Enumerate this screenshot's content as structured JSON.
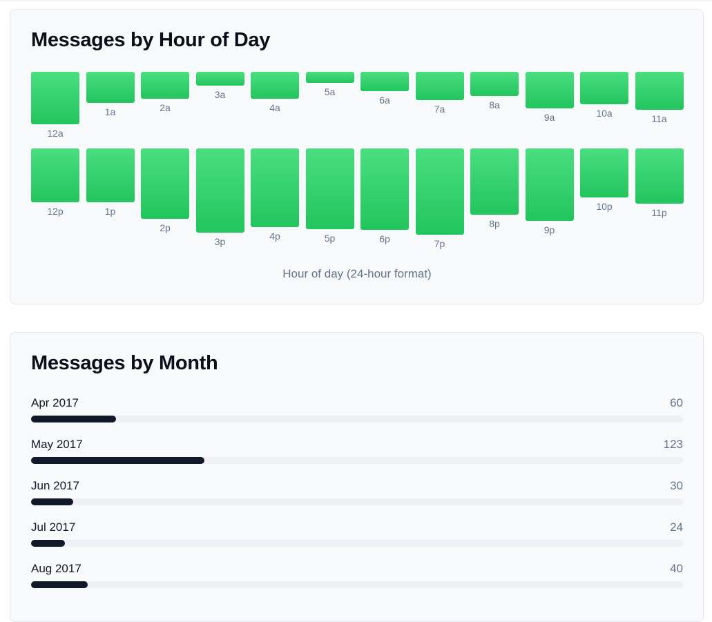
{
  "hour_chart": {
    "title": "Messages by Hour of Day",
    "xlabel": "Hour of day (24-hour format)"
  },
  "month_chart": {
    "title": "Messages by Month"
  },
  "chart_data": [
    {
      "type": "bar",
      "title": "Messages by Hour of Day",
      "xlabel": "Hour of day (24-hour format)",
      "ylabel": "",
      "categories": [
        "12a",
        "1a",
        "2a",
        "3a",
        "4a",
        "5a",
        "6a",
        "7a",
        "8a",
        "9a",
        "10a",
        "11a",
        "12p",
        "1p",
        "2p",
        "3p",
        "4p",
        "5p",
        "6p",
        "7p",
        "8p",
        "9p",
        "10p",
        "11p"
      ],
      "values": [
        76,
        45,
        39,
        20,
        39,
        16,
        28,
        41,
        35,
        53,
        47,
        55,
        78,
        78,
        102,
        122,
        114,
        117,
        118,
        125,
        96,
        105,
        71,
        80
      ],
      "colors": [
        "#4ade80",
        "#22c55e"
      ],
      "grid": false,
      "legend": "none"
    },
    {
      "type": "bar",
      "orientation": "horizontal",
      "title": "Messages by Month",
      "categories": [
        "Apr 2017",
        "May 2017",
        "Jun 2017",
        "Jul 2017",
        "Aug 2017"
      ],
      "values": [
        60,
        123,
        30,
        24,
        40
      ],
      "xlim": [
        0,
        462
      ],
      "fill_color": "#111827",
      "track_color": "#eef0f5"
    }
  ]
}
